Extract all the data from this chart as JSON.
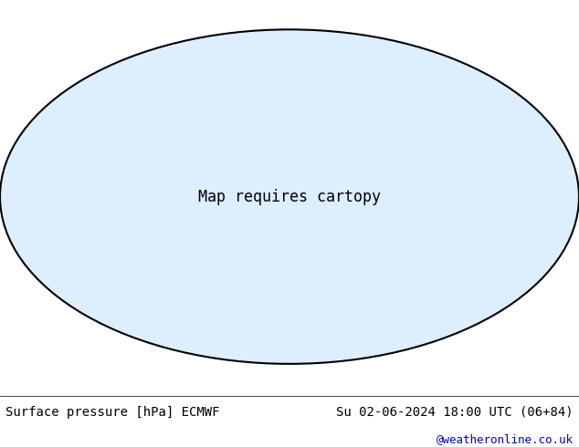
{
  "title_left": "Surface pressure [hPa] ECMWF",
  "title_right": "Su 02-06-2024 18:00 UTC (06+84)",
  "credit": "@weatheronline.co.uk",
  "credit_color": "#0000cc",
  "bg_color": "#ffffff",
  "map_bg": "#ffffff",
  "land_color": "#c8e6c8",
  "ocean_color": "#ffffff",
  "isobar_low_color": "#0000ff",
  "isobar_high_color": "#ff0000",
  "isobar_1013_color": "#000000",
  "contour_interval": 4,
  "pressure_min": 960,
  "pressure_max": 1040,
  "font_size_title": 10,
  "font_size_credit": 9,
  "font_family": "monospace"
}
